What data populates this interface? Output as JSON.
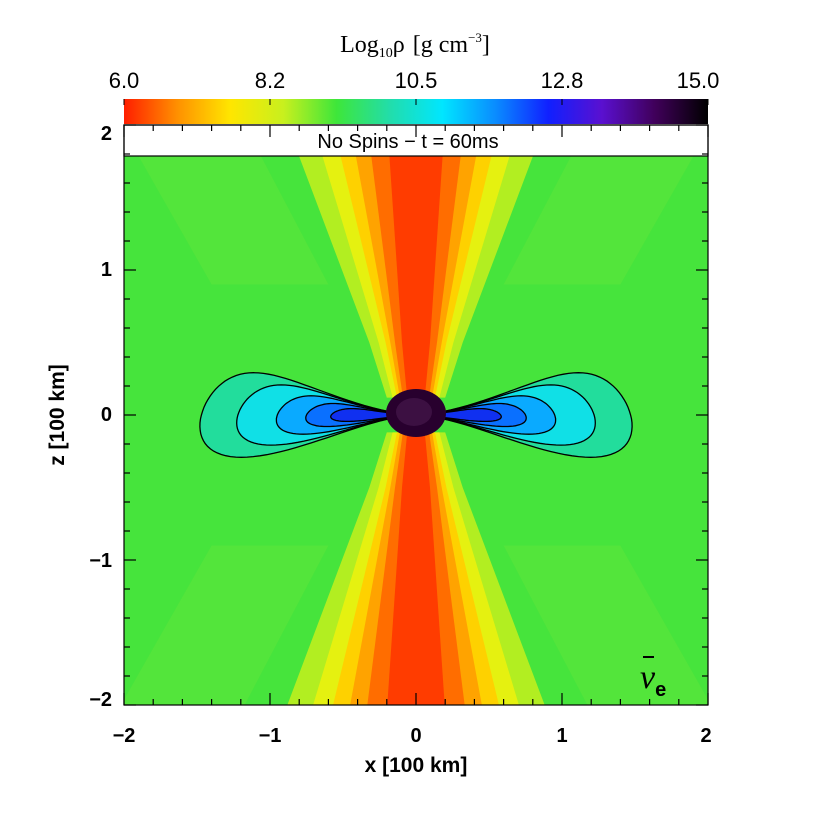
{
  "chart_data": {
    "type": "heatmap",
    "colorbar": {
      "title_prefix": "Log",
      "title_sub": "10",
      "title_symbol": "ρ",
      "title_unit_open": "[g cm",
      "title_unit_sup": "−3",
      "title_unit_close": "]",
      "ticks": [
        "6.0",
        "8.2",
        "10.5",
        "12.8",
        "15.0"
      ],
      "range": [
        6.0,
        15.0
      ],
      "colors": [
        "#ff1e00",
        "#ff9000",
        "#ffe600",
        "#c8f01e",
        "#3ee63a",
        "#22ddaa",
        "#00e6ff",
        "#0a8cff",
        "#1020ff",
        "#5a10d0",
        "#40005a",
        "#000000"
      ]
    },
    "annotation": "No Spins − t = 60ms",
    "neutrino_label": "ν",
    "neutrino_sub": "e",
    "xlabel": "x [100 km]",
    "ylabel": "z [100 km]",
    "xlim": [
      -2,
      2
    ],
    "ylim": [
      -2,
      2
    ],
    "xticks": [
      "−2",
      "−1",
      "0",
      "1",
      "2"
    ],
    "yticks": [
      "−2",
      "−1",
      "0",
      "1",
      "2"
    ],
    "contour_levels": [
      {
        "a": 1.47,
        "b": 0.66
      },
      {
        "a": 1.22,
        "b": 0.47
      },
      {
        "a": 0.95,
        "b": 0.3
      },
      {
        "a": 0.75,
        "b": 0.18
      },
      {
        "a": 0.58,
        "b": 0.1
      }
    ],
    "grid": false
  }
}
